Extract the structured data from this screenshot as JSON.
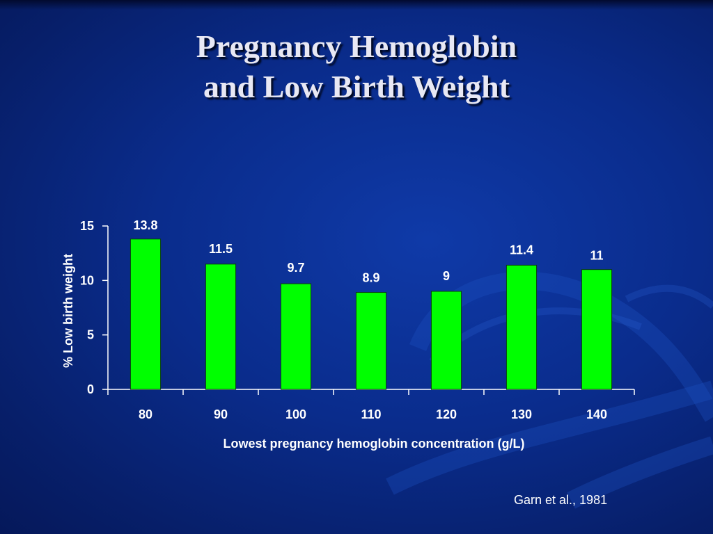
{
  "slide": {
    "title_line1": "Pregnancy Hemoglobin",
    "title_line2": "and Low Birth Weight",
    "citation": "Garn et al., 1981"
  },
  "chart_data": {
    "type": "bar",
    "categories": [
      "80",
      "90",
      "100",
      "110",
      "120",
      "130",
      "140"
    ],
    "values": [
      13.8,
      11.5,
      9.7,
      8.9,
      9,
      11.4,
      11
    ],
    "data_labels": [
      "13.8",
      "11.5",
      "9.7",
      "8.9",
      "9",
      "11.4",
      "11"
    ],
    "xlabel": "Lowest pregnancy hemoglobin concentration (g/L)",
    "ylabel": "% Low birth weight",
    "ylim": [
      0,
      15
    ],
    "yticks": [
      0,
      5,
      10,
      15
    ],
    "bar_color": "#00ff00",
    "grid": false,
    "legend": "none"
  },
  "colors": {
    "background": "#0a2c8c",
    "text": "#ffffff",
    "title": "#e8e8f4"
  }
}
